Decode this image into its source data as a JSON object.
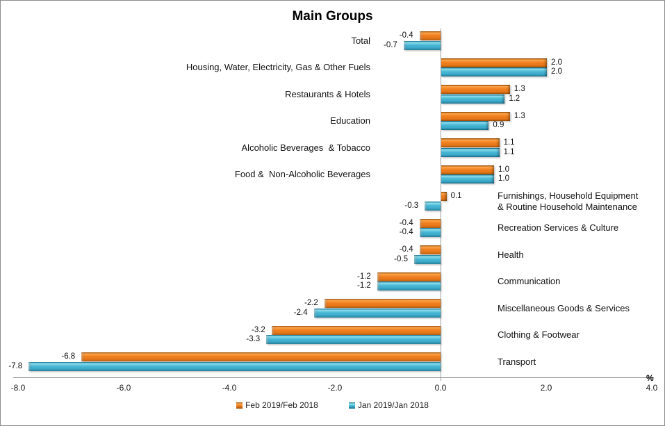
{
  "chart_data": {
    "type": "bar",
    "orientation": "horizontal",
    "title": "Main Groups",
    "unit_label": "%",
    "xlim": [
      -8.0,
      4.0
    ],
    "x_tick_values": [
      -8,
      -6,
      -4,
      -2,
      0,
      2,
      4
    ],
    "x_tick_labels": [
      "-8.0",
      "-6.0",
      "-4.0",
      "-2.0",
      "0.0",
      "2.0",
      "4.0"
    ],
    "grid": false,
    "legend_position": "bottom",
    "categories": [
      "Total",
      "Housing, Water, Electricity, Gas & Other Fuels",
      "Restaurants & Hotels",
      "Education",
      "Alcoholic Beverages  & Tobacco",
      "Food &  Non-Alcoholic Beverages",
      "Furnishings, Household Equipment\n& Routine Household Maintenance",
      "Recreation Services & Culture",
      "Health",
      "Communication",
      "Miscellaneous Goods & Services",
      "Clothing & Footwear",
      "Transport"
    ],
    "category_label_side": [
      "left",
      "left",
      "left",
      "left",
      "left",
      "left",
      "right",
      "right",
      "right",
      "right",
      "right",
      "right",
      "right"
    ],
    "series": [
      {
        "name": "Feb 2019/Feb 2018",
        "color": "#ED7D1F",
        "values": [
          -0.4,
          2.0,
          1.3,
          1.3,
          1.1,
          1.0,
          0.1,
          -0.4,
          -0.4,
          -1.2,
          -2.2,
          -3.2,
          -6.8
        ]
      },
      {
        "name": "Jan 2019/Jan 2018",
        "color": "#45B5D4",
        "values": [
          -0.7,
          2.0,
          1.2,
          0.9,
          1.1,
          1.0,
          -0.3,
          -0.4,
          -0.5,
          -1.2,
          -2.4,
          -3.3,
          -7.8
        ]
      }
    ]
  }
}
